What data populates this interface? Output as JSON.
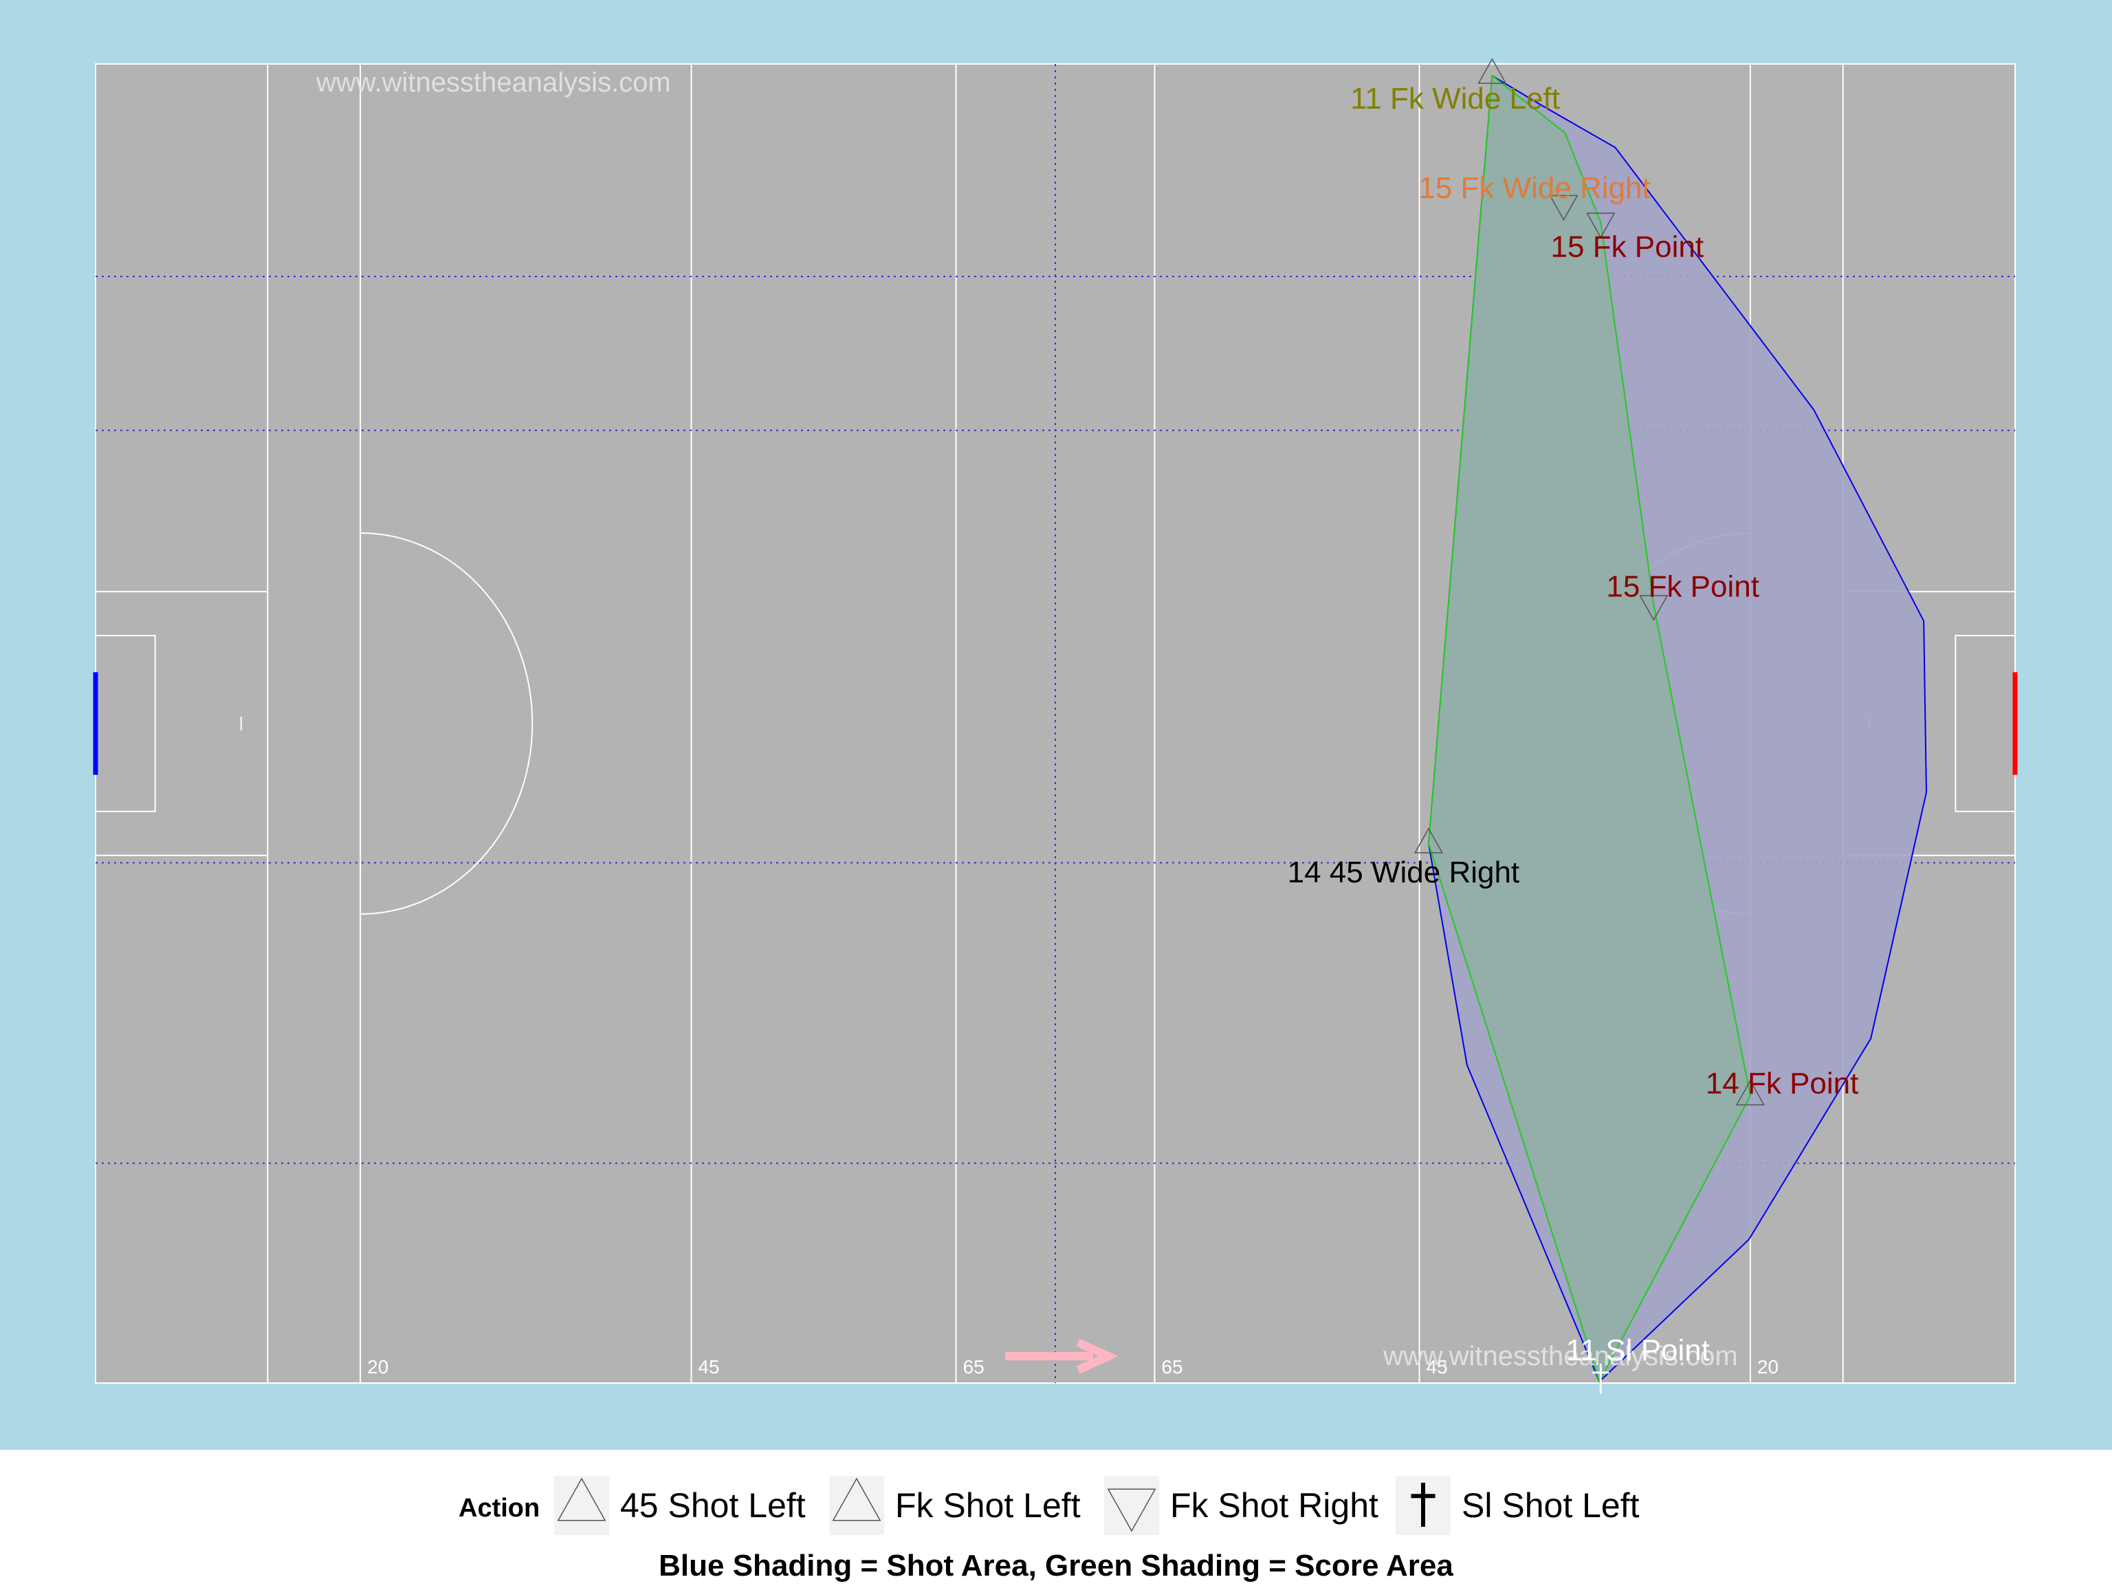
{
  "watermark": "www.witnesstheanalysis.com",
  "colors": {
    "panel_bg": "#add8e6",
    "pitch": "#b3b3b3",
    "shot_area_fill": "#a3a3c6",
    "shot_area_line": "#0000ee",
    "score_area_fill": "#94aeaa",
    "score_area_line": "#22cc22",
    "left_goal": "#0000ff",
    "right_goal": "#ff0000",
    "direction_arrow": "#ffb6c1",
    "label_point": "#8b0000",
    "label_wide_left": "#808000",
    "label_wide_right_fk": "#e07b39",
    "label_wide_right_45": "#000000",
    "label_sideline": "#ffffff"
  },
  "chart_data": {
    "type": "scatter",
    "pitch_length": 145,
    "pitch_width": 90,
    "attack_direction": "right",
    "distance_labels": [
      "20",
      "45",
      "65",
      "65",
      "45",
      "20"
    ],
    "shots": [
      {
        "label": "11 Fk Wide Left",
        "x": 105.5,
        "y": 89.3,
        "action": "Fk Shot Left",
        "label_color": "label_wide_left",
        "label_dx": -2.8,
        "label_dy": -1.6
      },
      {
        "label": "15 Fk Wide Right",
        "x": 110.9,
        "y": 80.4,
        "action": "Fk Shot Right",
        "label_color": "label_wide_right_fk",
        "label_dx": -2.2,
        "label_dy": 1.2
      },
      {
        "label": "15 Fk Point",
        "x": 113.7,
        "y": 79.2,
        "action": "Fk Shot Right",
        "label_color": "label_point",
        "label_dx": 2.0,
        "label_dy": -1.6
      },
      {
        "label": "15 Fk Point",
        "x": 117.7,
        "y": 53.1,
        "action": "Fk Shot Right",
        "label_color": "label_point",
        "label_dx": 2.2,
        "label_dy": 1.3
      },
      {
        "label": "14 45 Wide Right",
        "x": 100.7,
        "y": 36.8,
        "action": "45 Shot Left",
        "label_color": "label_wide_right_45",
        "label_dx": -1.9,
        "label_dy": -1.9
      },
      {
        "label": "14 Fk Point",
        "x": 125.0,
        "y": 19.6,
        "action": "Fk Shot Left",
        "label_color": "label_point",
        "label_dx": 2.4,
        "label_dy": 0.9
      },
      {
        "label": "11 Sl Point",
        "x": 113.7,
        "y": 0.3,
        "action": "Sl Shot Left",
        "label_color": "label_sideline",
        "label_dx": 2.8,
        "label_dy": 2.0
      }
    ],
    "shot_area_hull": [
      [
        105.5,
        89.2
      ],
      [
        109.0,
        87.3
      ],
      [
        114.8,
        84.3
      ],
      [
        129.8,
        66.4
      ],
      [
        138.1,
        52.0
      ],
      [
        138.3,
        40.3
      ],
      [
        134.1,
        23.5
      ],
      [
        124.9,
        9.8
      ],
      [
        113.6,
        0.1
      ],
      [
        103.6,
        21.7
      ],
      [
        100.7,
        36.8
      ],
      [
        105.5,
        89.2
      ]
    ],
    "score_area_hull": [
      [
        105.5,
        89.2
      ],
      [
        111.0,
        85.3
      ],
      [
        113.7,
        79.2
      ],
      [
        117.7,
        53.1
      ],
      [
        125.0,
        19.6
      ],
      [
        113.6,
        0.1
      ],
      [
        100.7,
        36.8
      ],
      [
        105.5,
        89.2
      ]
    ]
  },
  "legend": {
    "title": "Action",
    "items": [
      {
        "label": "45 Shot Left",
        "symbol": "triangle-up"
      },
      {
        "label": "Fk Shot Left",
        "symbol": "triangle-up"
      },
      {
        "label": "Fk Shot Right",
        "symbol": "triangle-down"
      },
      {
        "label": "Sl Shot Left",
        "symbol": "dagger"
      }
    ]
  },
  "caption": "Blue Shading = Shot Area, Green Shading = Score Area"
}
